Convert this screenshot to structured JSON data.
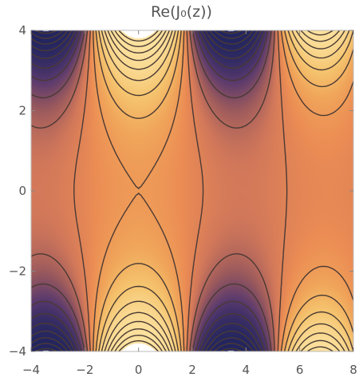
{
  "chart_data": {
    "type": "heatmap",
    "subtype": "contour",
    "title": "Re(J₀(z))",
    "xlabel": "",
    "ylabel": "",
    "xlim": [
      -4,
      8
    ],
    "ylim": [
      -4,
      4
    ],
    "x_ticks": [
      "−4",
      "−2",
      "0",
      "2",
      "4",
      "6",
      "8"
    ],
    "y_ticks": [
      "−4",
      "−2",
      "0",
      "2",
      "4"
    ],
    "x_tick_values": [
      -4,
      -2,
      0,
      2,
      4,
      6,
      8
    ],
    "y_tick_values": [
      -4,
      -2,
      0,
      2,
      4
    ],
    "function": "Re(J0(x + i y))",
    "contour_lines": true,
    "colormap": [
      "#20245e",
      "#5a3a6e",
      "#9c5a5c",
      "#d2785a",
      "#eb8c54",
      "#f0a55a",
      "#f5c46e",
      "#fbe2a0",
      "#ffffff"
    ],
    "contour_line_color": "#4a3a34",
    "grid": false,
    "legend": "none"
  }
}
